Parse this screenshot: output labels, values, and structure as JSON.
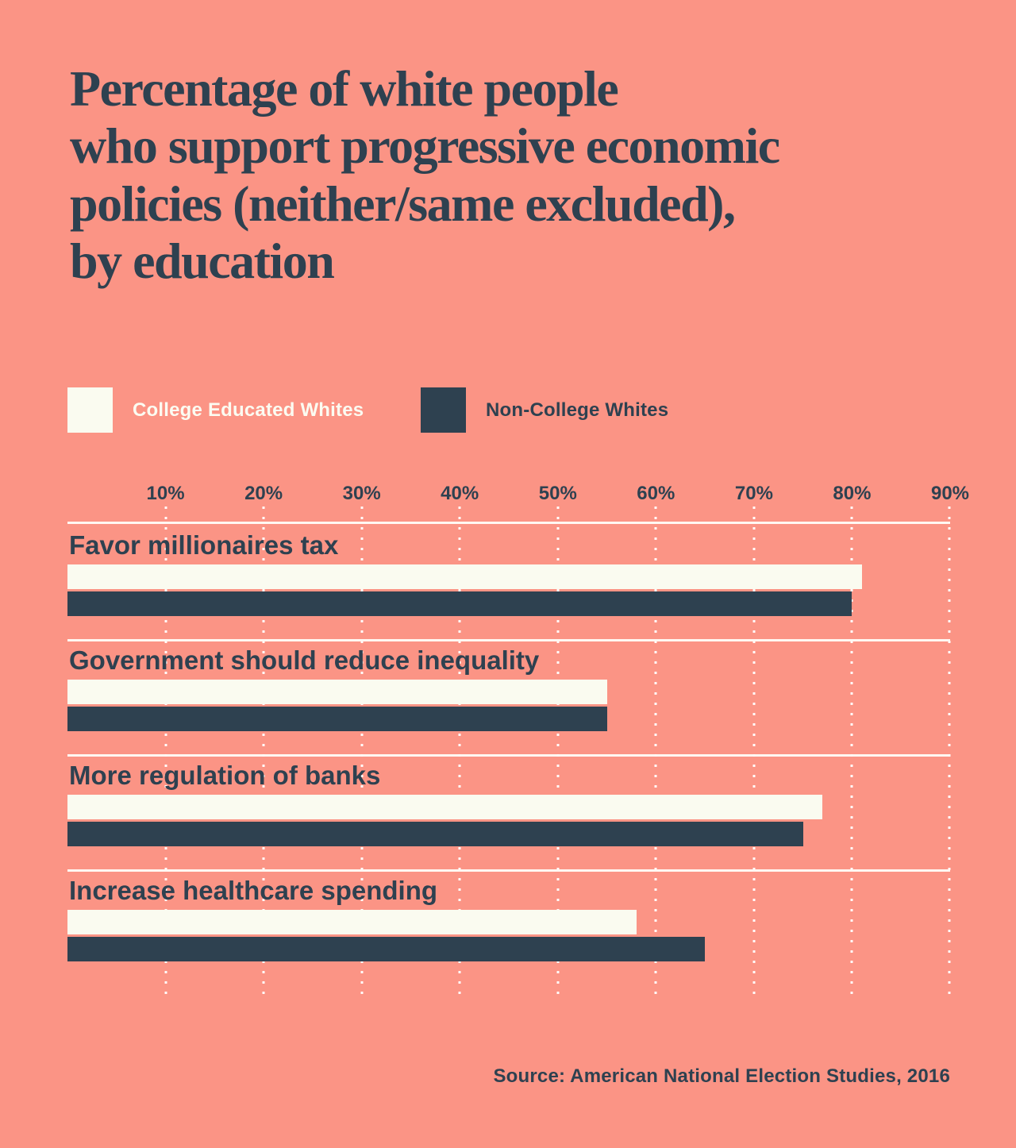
{
  "title": "Percentage of white people\nwho support progressive economic\npolicies (neither/same excluded),\nby education",
  "legend": {
    "college": {
      "label": "College Educated Whites",
      "color": "#FAFBF0"
    },
    "noncollege": {
      "label": "Non-College Whites",
      "color": "#2E4150"
    }
  },
  "axis": {
    "ticks": [
      "10%",
      "20%",
      "30%",
      "40%",
      "50%",
      "60%",
      "70%",
      "80%",
      "90%"
    ],
    "max": 90
  },
  "chart_data": {
    "type": "bar",
    "orientation": "horizontal",
    "title": "Percentage of white people who support progressive economic policies (neither/same excluded), by education",
    "categories": [
      "Favor millionaires tax",
      "Government should reduce inequality",
      "More regulation of banks",
      "Increase healthcare spending"
    ],
    "series": [
      {
        "name": "College Educated Whites",
        "color": "#FAFBF0",
        "values": [
          81,
          55,
          77,
          58
        ]
      },
      {
        "name": "Non-College Whites",
        "color": "#2E4150",
        "values": [
          80,
          55,
          75,
          65
        ]
      }
    ],
    "xlabel": "",
    "ylabel": "",
    "xlim": [
      0,
      90
    ],
    "tick_format": "percent",
    "gridlines": "dotted-vertical-white",
    "legend_position": "top-left"
  },
  "source": "Source: American National Election Studies, 2016",
  "colors": {
    "background": "#FB9485",
    "text_navy": "#2E4150",
    "bar_cream": "#FAFBF0",
    "bar_navy": "#2E4150",
    "grid_white": "#FFFDF8"
  }
}
